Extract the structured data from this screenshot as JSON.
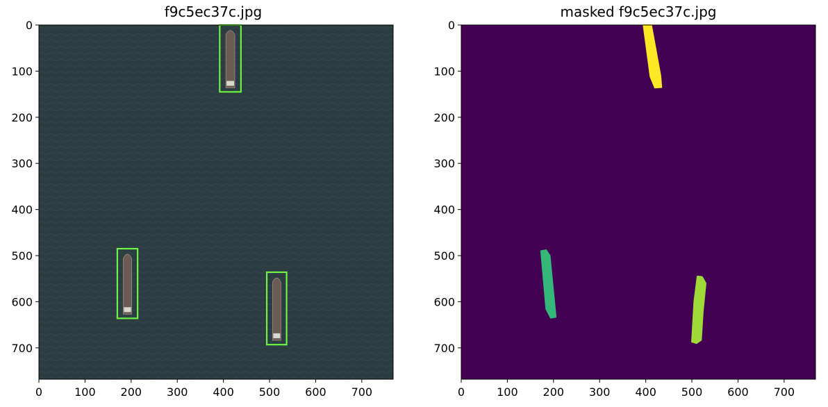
{
  "chart_data": [
    {
      "type": "image-with-boxes",
      "title": "f9c5ec37c.jpg",
      "xlim": [
        0,
        768
      ],
      "ylim": [
        768,
        0
      ],
      "xticks": [
        0,
        100,
        200,
        300,
        400,
        500,
        600,
        700
      ],
      "yticks": [
        0,
        100,
        200,
        300,
        400,
        500,
        600,
        700
      ],
      "background_color": "#2b3d41",
      "box_color": "#6cf542",
      "ship_color": "#6e5a54",
      "boxes": [
        {
          "x0": 392,
          "y0": 0,
          "x1": 438,
          "y1": 145
        },
        {
          "x0": 170,
          "y0": 485,
          "x1": 214,
          "y1": 636
        },
        {
          "x0": 494,
          "y0": 536,
          "x1": 537,
          "y1": 693
        }
      ]
    },
    {
      "type": "segmentation-mask",
      "title": "masked f9c5ec37c.jpg",
      "xlim": [
        0,
        768
      ],
      "ylim": [
        768,
        0
      ],
      "xticks": [
        0,
        100,
        200,
        300,
        400,
        500,
        600,
        700
      ],
      "yticks": [
        0,
        100,
        200,
        300,
        400,
        500,
        600,
        700
      ],
      "background_color": "#440154",
      "masks": [
        {
          "color": "#fde725",
          "polygon": [
            [
              395,
              0
            ],
            [
              412,
              0
            ],
            [
              432,
              110
            ],
            [
              434,
              135
            ],
            [
              420,
              136
            ],
            [
              410,
              112
            ]
          ]
        },
        {
          "color": "#35b779",
          "polygon": [
            [
              173,
              490
            ],
            [
              184,
              488
            ],
            [
              192,
              500
            ],
            [
              205,
              633
            ],
            [
              194,
              635
            ],
            [
              184,
              615
            ]
          ]
        },
        {
          "color": "#a0da39",
          "polygon": [
            [
              512,
              545
            ],
            [
              522,
              546
            ],
            [
              530,
              560
            ],
            [
              524,
              620
            ],
            [
              520,
              683
            ],
            [
              510,
              690
            ],
            [
              500,
              687
            ],
            [
              505,
              600
            ]
          ]
        }
      ]
    }
  ]
}
